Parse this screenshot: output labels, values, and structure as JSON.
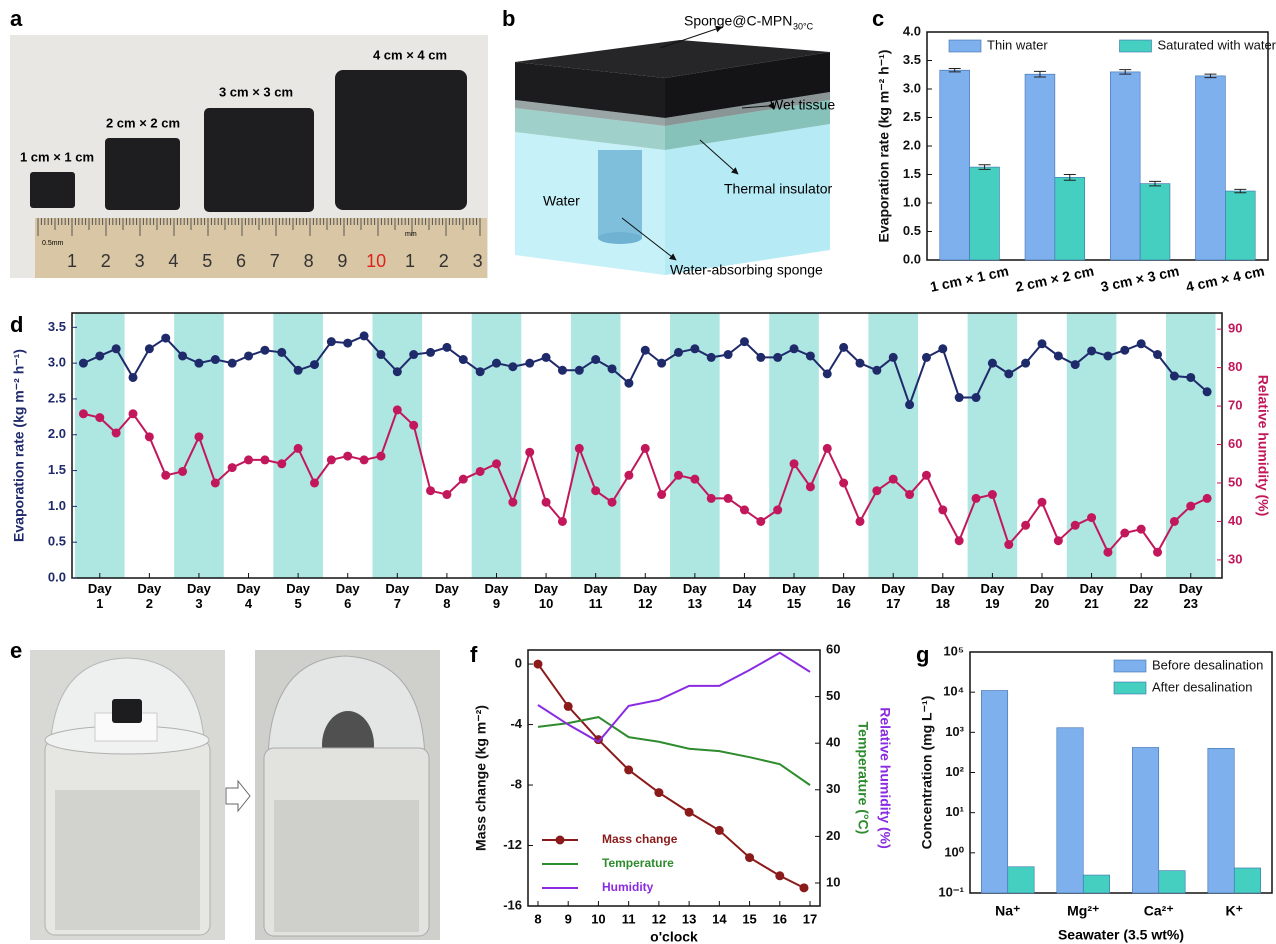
{
  "panel_labels": [
    "a",
    "b",
    "c",
    "d",
    "e",
    "f",
    "g"
  ],
  "panel_a": {
    "size_labels": [
      "1 cm × 1 cm",
      "2 cm × 2 cm",
      "3 cm × 3 cm",
      "4 cm × 4 cm"
    ],
    "ruler_labels": [
      "1",
      "2",
      "3",
      "4",
      "5",
      "6",
      "7",
      "8",
      "9",
      "10",
      "1",
      "2",
      "3"
    ],
    "ruler_units": [
      "0.5mm",
      "mm"
    ]
  },
  "panel_b": {
    "top_label": "Sponge@C-MPN",
    "top_label_sub": "30°C",
    "labels": [
      "Wet tissue",
      "Thermal insulator",
      "Water",
      "Water-absorbing sponge"
    ]
  },
  "chart_data": [
    {
      "type": "bar",
      "ylabel": "Evaporation rate (kg m⁻² h⁻¹)",
      "categories": [
        "1 cm × 1 cm",
        "2 cm × 2 cm",
        "3 cm × 3 cm",
        "4 cm × 4 cm"
      ],
      "series": [
        {
          "name": "Thin water",
          "color": "#7fb0ee",
          "values": [
            3.33,
            3.26,
            3.3,
            3.23
          ],
          "errors": [
            0.03,
            0.05,
            0.04,
            0.03
          ]
        },
        {
          "name": "Saturated with water",
          "color": "#45cfc0",
          "values": [
            1.63,
            1.45,
            1.34,
            1.21
          ],
          "errors": [
            0.04,
            0.05,
            0.04,
            0.03
          ]
        }
      ],
      "ylim": [
        0,
        4
      ],
      "yticks": [
        {
          "value": 0,
          "label": "0.0"
        },
        0.5,
        {
          "value": 1,
          "label": "1.0"
        },
        1.5,
        {
          "value": 2,
          "label": "2.0"
        },
        2.5,
        {
          "value": 3,
          "label": "3.0"
        },
        3.5,
        {
          "value": 4,
          "label": "4.0"
        }
      ],
      "legend": "top"
    },
    {
      "type": "line",
      "ylabel": "Evaporation rate (kg m⁻² h⁻¹)",
      "y2label": [
        "Relative humidity (%)"
      ],
      "band_color": "#aee6e2",
      "ycolor": "#1f2a6b",
      "y2color": "#c2185b",
      "x": [
        0.67,
        1,
        1.33,
        1.67,
        2,
        2.33,
        2.67,
        3,
        3.33,
        3.67,
        4,
        4.33,
        4.67,
        5,
        5.33,
        5.67,
        6,
        6.33,
        6.67,
        7,
        7.33,
        7.67,
        8,
        8.33,
        8.67,
        9,
        9.33,
        9.67,
        10,
        10.33,
        10.67,
        11,
        11.33,
        11.67,
        12,
        12.33,
        12.67,
        13,
        13.33,
        13.67,
        14,
        14.33,
        14.67,
        15,
        15.33,
        15.67,
        16,
        16.33,
        16.67,
        17,
        17.33,
        17.67,
        18,
        18.33,
        18.67,
        19,
        19.33,
        19.67,
        20,
        20.33,
        20.67,
        21,
        21.33,
        21.67,
        22,
        22.33,
        22.67,
        23,
        23.33
      ],
      "series": [
        {
          "color": "#1f2a6b",
          "marker": true,
          "values": [
            3.0,
            3.1,
            3.2,
            2.8,
            3.2,
            3.35,
            3.1,
            3.0,
            3.05,
            3.0,
            3.1,
            3.18,
            3.15,
            2.9,
            2.98,
            3.3,
            3.28,
            3.38,
            3.12,
            2.88,
            3.12,
            3.15,
            3.22,
            3.05,
            2.88,
            3.0,
            2.95,
            3.0,
            3.08,
            2.9,
            2.9,
            3.05,
            2.92,
            2.72,
            3.18,
            3.0,
            3.15,
            3.2,
            3.08,
            3.12,
            3.3,
            3.08,
            3.08,
            3.2,
            3.1,
            2.85,
            3.22,
            3.0,
            2.9,
            3.08,
            2.42,
            3.08,
            3.2,
            2.52,
            2.52,
            3.0,
            2.85,
            3.0,
            3.27,
            3.1,
            2.98,
            3.17,
            3.1,
            3.18,
            3.27,
            3.12,
            2.82,
            2.8,
            2.6
          ]
        },
        {
          "color": "#c2185b",
          "marker": true,
          "axis": "y2",
          "values": [
            68,
            67,
            63,
            68,
            62,
            52,
            53,
            62,
            50,
            54,
            56,
            56,
            55,
            59,
            50,
            56,
            57,
            56,
            57,
            69,
            65,
            48,
            47,
            51,
            53,
            55,
            45,
            58,
            45,
            40,
            59,
            48,
            45,
            52,
            59,
            47,
            52,
            51,
            46,
            46,
            43,
            40,
            43,
            55,
            49,
            59,
            50,
            40,
            48,
            51,
            47,
            52,
            43,
            35,
            46,
            47,
            34,
            39,
            45,
            35,
            39,
            41,
            32,
            37,
            38,
            32,
            40,
            44,
            46
          ]
        }
      ],
      "xlim": [
        0.44,
        23.63
      ],
      "xticks": [
        {
          "value": 1,
          "label": "Day 1"
        },
        {
          "value": 2,
          "label": "Day 2"
        },
        {
          "value": 3,
          "label": "Day 3"
        },
        {
          "value": 4,
          "label": "Day 4"
        },
        {
          "value": 5,
          "label": "Day 5"
        },
        {
          "value": 6,
          "label": "Day 6"
        },
        {
          "value": 7,
          "label": "Day 7"
        },
        {
          "value": 8,
          "label": "Day 8"
        },
        {
          "value": 9,
          "label": "Day 9"
        },
        {
          "value": 10,
          "label": "Day 10"
        },
        {
          "value": 11,
          "label": "Day 11"
        },
        {
          "value": 12,
          "label": "Day 12"
        },
        {
          "value": 13,
          "label": "Day 13"
        },
        {
          "value": 14,
          "label": "Day 14"
        },
        {
          "value": 15,
          "label": "Day 15"
        },
        {
          "value": 16,
          "label": "Day 16"
        },
        {
          "value": 17,
          "label": "Day 17"
        },
        {
          "value": 18,
          "label": "Day 18"
        },
        {
          "value": 19,
          "label": "Day 19"
        },
        {
          "value": 20,
          "label": "Day 20"
        },
        {
          "value": 21,
          "label": "Day 21"
        },
        {
          "value": 22,
          "label": "Day 22"
        },
        {
          "value": 23,
          "label": "Day 23"
        }
      ],
      "ylim": [
        0,
        3.7
      ],
      "yticks": [
        {
          "value": 0,
          "label": "0.0"
        },
        0.5,
        {
          "value": 1,
          "label": "1.0"
        },
        1.5,
        {
          "value": 2,
          "label": "2.0"
        },
        2.5,
        {
          "value": 3,
          "label": "3.0"
        },
        3.5
      ],
      "y2lim": [
        25.3,
        94.2
      ],
      "y2ticks": [
        30,
        40,
        50,
        60,
        70,
        80,
        90
      ]
    },
    {
      "type": "line",
      "xlabel": "o'clock",
      "ylabel": "Mass change (kg m⁻²)",
      "y2label": [
        "Temperature (°C)",
        "Relative humidity (%)"
      ],
      "series": [
        {
          "name": "Mass change",
          "color": "#8b1a1a",
          "marker": true,
          "x": [
            8,
            9,
            10,
            11,
            12,
            13,
            14,
            15,
            16,
            16.8
          ],
          "values": [
            0,
            -2.8,
            -5.0,
            -7.0,
            -8.5,
            -9.8,
            -11.0,
            -12.8,
            -14.0,
            -14.8
          ]
        },
        {
          "name": "Temperature",
          "color": "#2e8b2e",
          "axis": "y2",
          "x": [
            8,
            9,
            10,
            11,
            12,
            13,
            14,
            15,
            16,
            17
          ],
          "values": [
            43.5,
            44.3,
            45.6,
            41.3,
            40.3,
            38.8,
            38.3,
            37,
            35.5,
            31
          ]
        },
        {
          "name": "Humidity",
          "color": "#8a2be2",
          "axis": "y2",
          "x": [
            8,
            9,
            10,
            11,
            12,
            13,
            14,
            15,
            16,
            17
          ],
          "values": [
            48.2,
            44,
            40.3,
            48,
            49.3,
            52.3,
            52.3,
            55.7,
            59.4,
            55.3
          ]
        }
      ],
      "xlim": [
        7.67,
        17.33
      ],
      "xticks": [
        8,
        9,
        10,
        11,
        12,
        13,
        14,
        15,
        16,
        17
      ],
      "ylim": [
        -16,
        0.93
      ],
      "yticks": [
        -16,
        -12,
        -8,
        -4,
        0
      ],
      "y2lim": [
        5.06,
        60
      ],
      "y2ticks": [
        10,
        20,
        30,
        40,
        50,
        60
      ],
      "legend": "lower left"
    },
    {
      "type": "bar",
      "log_scale": true,
      "xlabel": "Seawater (3.5 wt%)",
      "ylabel": "Concentration (mg L⁻¹)",
      "categories": [
        "Na⁺",
        "Mg²⁺",
        "Ca²⁺",
        "K⁺"
      ],
      "series": [
        {
          "name": "Before desalination",
          "color": "#7fb0ee",
          "values": [
            11000,
            1300,
            420,
            400
          ]
        },
        {
          "name": "After desalination",
          "color": "#45cfc0",
          "values": [
            0.45,
            0.28,
            0.36,
            0.42
          ]
        }
      ],
      "ylim": [
        0.1,
        100000
      ],
      "yticks": [
        {
          "value": 0.1,
          "label": "10⁻¹"
        },
        {
          "value": 1,
          "label": "10⁰"
        },
        {
          "value": 10,
          "label": "10¹"
        },
        {
          "value": 100,
          "label": "10²"
        },
        {
          "value": 1000,
          "label": "10³"
        },
        {
          "value": 10000,
          "label": "10⁴"
        },
        {
          "value": 100000,
          "label": "10⁵"
        }
      ],
      "legend": "upper right"
    }
  ]
}
